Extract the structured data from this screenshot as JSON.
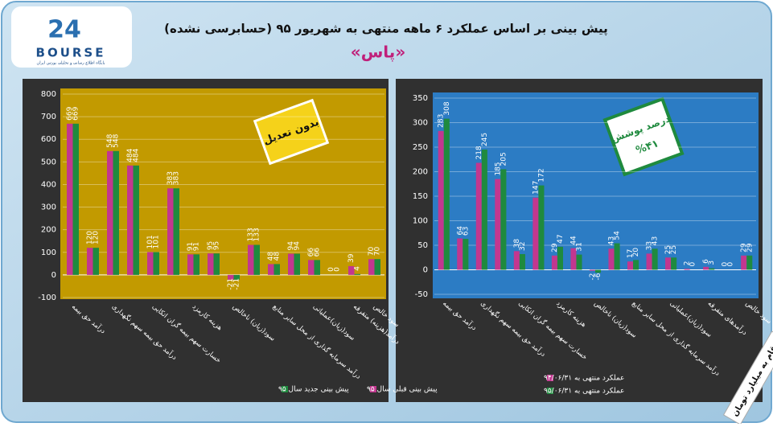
{
  "header": {
    "title": "پیش بینی بر اساس عملکرد ۶ ماهه منتهی به شهریور ۹۵ (حسابرسی نشده)",
    "company": "«پاس»",
    "logo_number": "24",
    "logo_text": "BOURSE",
    "logo_caption": "پایگاه اطلاع رسانی و تحلیلی بورس ایران"
  },
  "note": "ارقام به میلیارد تومان",
  "chart_data": [
    {
      "type": "bar",
      "badge": "بدون تعدیل",
      "categories": [
        "درآمد حق بیمه",
        null,
        "درآمد حق بیمه سهم نگهداری",
        null,
        "خسارت سهم بیمه گران اتکایی",
        null,
        "هزینه کارمزد",
        null,
        "سود(زیان) ناخالص",
        null,
        "درآمد سرمایه گذاری از محل سایر منابع",
        null,
        "سود(زیان)عملیاتی",
        null,
        "درآمد(هزینه) متفرقه",
        "سود خالص"
      ],
      "series": [
        {
          "name": "پیش بینی قبلی سال ۹۵",
          "color": "#c2378f",
          "values": [
            669,
            120,
            548,
            484,
            101,
            383,
            91,
            95,
            -21,
            133,
            48,
            94,
            66,
            0,
            39,
            70
          ]
        },
        {
          "name": "پیش بینی جدید سال ۹۵",
          "color": "#1f8a3e",
          "values": [
            669,
            120,
            548,
            484,
            101,
            383,
            91,
            95,
            -21,
            133,
            48,
            94,
            66,
            0,
            4,
            70
          ]
        }
      ],
      "ylim": [
        -100,
        800
      ],
      "yticks": [
        -100,
        0,
        100,
        200,
        300,
        400,
        500,
        600,
        700,
        800
      ],
      "grid": true
    },
    {
      "type": "bar",
      "badge": "درصد پوشش",
      "badge_value": "%۴۱",
      "categories": [
        "درآمد حق بیمه",
        null,
        "درآمد حق بیمه سهم نگهداری",
        null,
        "خسارت سهم بیمه گران اتکایی",
        null,
        "هزینه کارمزد",
        null,
        "سود(زیان) ناخالص",
        null,
        "درآمد سرمایه گذاری از محل سایر منابع",
        null,
        "سود(زیان)عملیاتی",
        null,
        "درآمدهای متفرقه",
        null,
        "سود خالص"
      ],
      "series": [
        {
          "name": "عملکرد منتهی به ۹۴/۰۶/۳۱",
          "color": "#c2378f",
          "values": [
            283,
            64,
            218,
            185,
            38,
            147,
            29,
            44,
            -2,
            43,
            17,
            33,
            25,
            2,
            6,
            0,
            29
          ]
        },
        {
          "name": "عملکرد منتهی به ۹۵/۰۶/۳۱",
          "color": "#1f8a3e",
          "values": [
            308,
            63,
            245,
            205,
            32,
            172,
            47,
            31,
            -6,
            54,
            20,
            43,
            25,
            0,
            3,
            0,
            29
          ]
        }
      ],
      "ylim": [
        -50,
        350
      ],
      "yticks": [
        -50,
        0,
        50,
        100,
        150,
        200,
        250,
        300,
        350
      ],
      "grid": true
    }
  ]
}
